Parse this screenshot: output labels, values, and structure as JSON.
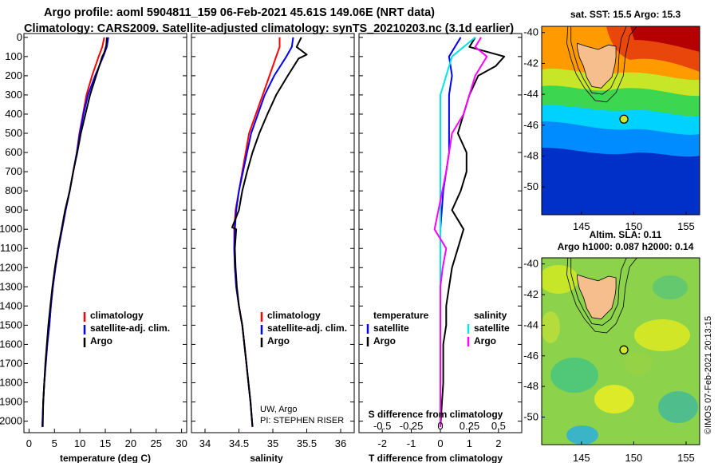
{
  "header": {
    "line1": "Argo profile: aoml 5904811_159 06-Feb-2021 45.61S 149.06E (NRT data)",
    "line2": "Climatology: CARS2009. Satellite-adjusted climatology: synTS_20210203.nc (3.1d earlier)"
  },
  "colors": {
    "climatology": "#ff0000",
    "satellite": "#0000ff",
    "argo": "#000000",
    "sat_t": "#0000ff",
    "sat_s": "#00e5e5",
    "argo_s": "#ff00ff"
  },
  "depth_axis": {
    "ticks": [
      "0",
      "100",
      "200",
      "300",
      "400",
      "500",
      "600",
      "700",
      "800",
      "900",
      "1000",
      "1100",
      "1200",
      "1300",
      "1400",
      "1500",
      "1600",
      "1700",
      "1800",
      "1900",
      "2000"
    ]
  },
  "legend_ts": {
    "climatology": "climatology",
    "satellite": "satellite-adj. clim.",
    "argo": "Argo"
  },
  "legend_diff": {
    "temperature": "temperature",
    "salinity": "salinity",
    "satellite": "satellite",
    "argo": "Argo"
  },
  "credits": {
    "line1": "UW, Argo",
    "line2": "PI: STEPHEN RISER"
  },
  "maps": {
    "top_title": "sat. SST: 15.5 Argo: 15.3",
    "bottom_title1": "Altim. SLA: 0.11",
    "bottom_title2": "Argo h1000: 0.087 h2000: 0.14",
    "lat_ticks": [
      "-40",
      "-42",
      "-44",
      "-46",
      "-48",
      "-50"
    ],
    "lon_ticks": [
      "145",
      "150",
      "155"
    ],
    "stamp": "©IMOS 07-Feb-2021 20:13:15",
    "argo_position": {
      "lat": -45.61,
      "lon": 149.06
    }
  },
  "chart_data": [
    {
      "type": "line",
      "xlabel": "temperature (deg C)",
      "ylabel": "",
      "xlim": [
        -1,
        31
      ],
      "ylim": [
        2060,
        0
      ],
      "x_ticks": [
        "0",
        "5",
        "10",
        "15",
        "20",
        "25",
        "30"
      ],
      "series": [
        {
          "name": "climatology",
          "color": "#ff0000",
          "x": [
            14.8,
            14.4,
            13.7,
            12.4,
            11.3,
            10.6,
            9.9,
            9.4,
            8.7,
            8.0,
            7.2,
            6.5,
            5.8,
            5.2,
            4.7,
            4.3,
            4.0,
            3.6,
            3.3,
            3.0,
            2.8,
            2.6
          ],
          "y": [
            0,
            50,
            100,
            200,
            300,
            400,
            500,
            600,
            700,
            800,
            900,
            1000,
            1100,
            1200,
            1300,
            1400,
            1500,
            1600,
            1700,
            1800,
            1900,
            2030
          ]
        },
        {
          "name": "satellite-adj. clim.",
          "color": "#0000ff",
          "x": [
            15.6,
            15.3,
            14.6,
            13.0,
            11.6,
            10.7,
            10.0,
            9.4,
            8.7,
            8.0,
            7.2,
            6.5,
            5.8,
            5.2,
            4.7,
            4.3,
            4.0,
            3.6,
            3.3,
            3.0,
            2.8,
            2.6
          ],
          "y": [
            0,
            50,
            100,
            200,
            300,
            400,
            500,
            600,
            700,
            800,
            900,
            1000,
            1100,
            1200,
            1300,
            1400,
            1500,
            1600,
            1700,
            1800,
            1900,
            2030
          ]
        },
        {
          "name": "Argo",
          "color": "#000000",
          "x": [
            15.3,
            15.2,
            14.8,
            14.4,
            13.2,
            12.0,
            11.1,
            10.2,
            9.5,
            8.7,
            8.0,
            7.1,
            6.4,
            5.7,
            5.1,
            4.6,
            4.2,
            3.8,
            3.5,
            3.2,
            3.0,
            2.8,
            2.7
          ],
          "y": [
            0,
            40,
            80,
            100,
            200,
            300,
            400,
            500,
            600,
            700,
            800,
            900,
            1000,
            1100,
            1200,
            1300,
            1400,
            1500,
            1600,
            1700,
            1800,
            1900,
            2030
          ]
        }
      ]
    },
    {
      "type": "line",
      "xlabel": "salinity",
      "ylabel": "",
      "xlim": [
        33.8,
        36.2
      ],
      "ylim": [
        2060,
        0
      ],
      "x_ticks": [
        "34",
        "34.5",
        "35",
        "35.5",
        "36"
      ],
      "series": [
        {
          "name": "climatology",
          "color": "#ff0000",
          "x": [
            35.1,
            35.1,
            35.05,
            34.95,
            34.85,
            34.75,
            34.65,
            34.6,
            34.55,
            34.5,
            34.45,
            34.43,
            34.43,
            34.44,
            34.46,
            34.5,
            34.55,
            34.58,
            34.61,
            34.64,
            34.67,
            34.7
          ],
          "y": [
            0,
            50,
            100,
            200,
            300,
            400,
            500,
            600,
            700,
            800,
            900,
            1000,
            1100,
            1200,
            1300,
            1400,
            1500,
            1600,
            1700,
            1800,
            1900,
            2030
          ]
        },
        {
          "name": "satellite-adj. clim.",
          "color": "#0000ff",
          "x": [
            35.3,
            35.28,
            35.2,
            35.02,
            34.88,
            34.78,
            34.68,
            34.62,
            34.56,
            34.5,
            34.46,
            34.44,
            34.43,
            34.44,
            34.46,
            34.5,
            34.55,
            34.58,
            34.61,
            34.64,
            34.67,
            34.7
          ],
          "y": [
            0,
            50,
            100,
            200,
            300,
            400,
            500,
            600,
            700,
            800,
            900,
            1000,
            1100,
            1200,
            1300,
            1400,
            1500,
            1600,
            1700,
            1800,
            1900,
            2030
          ]
        },
        {
          "name": "Argo",
          "color": "#000000",
          "x": [
            35.42,
            35.35,
            35.5,
            35.38,
            35.22,
            35.05,
            34.92,
            34.8,
            34.7,
            34.62,
            34.55,
            34.5,
            34.4,
            34.46,
            34.44,
            34.45,
            34.47,
            34.5,
            34.55,
            34.58,
            34.61,
            34.64,
            34.67,
            34.7
          ],
          "y": [
            0,
            50,
            90,
            110,
            200,
            300,
            400,
            500,
            600,
            700,
            800,
            900,
            990,
            1000,
            1100,
            1200,
            1300,
            1400,
            1500,
            1600,
            1700,
            1800,
            1900,
            2030
          ]
        }
      ]
    },
    {
      "type": "line",
      "xlabel": "T difference from climatology",
      "ylabel": "",
      "xlim": [
        -2.8,
        2.8
      ],
      "ylim": [
        2060,
        0
      ],
      "x_ticks": [
        "-2",
        "-1",
        "0",
        "1",
        "2"
      ],
      "x2label": "S difference from climatology",
      "x2_ticks": [
        "-0.5",
        "-0.25",
        "0",
        "0.25",
        "0.5"
      ],
      "series": [
        {
          "name": "temperature satellite",
          "color": "#0000ff",
          "x": [
            0.7,
            0.5,
            0.3,
            0.4,
            0.3,
            0.3,
            0.3,
            0.3,
            0.2,
            0.1,
            0.05,
            0.0,
            0.0,
            0.0,
            0.0,
            0.0,
            0.0,
            0.0,
            0.0,
            0.0,
            0.0,
            0.0
          ],
          "y": [
            0,
            50,
            100,
            200,
            300,
            400,
            500,
            600,
            700,
            800,
            900,
            1000,
            1100,
            1200,
            1300,
            1400,
            1500,
            1600,
            1700,
            1800,
            1900,
            2030
          ]
        },
        {
          "name": "temperature Argo",
          "color": "#000000",
          "x": [
            1.2,
            1.0,
            2.2,
            1.9,
            1.3,
            1.0,
            0.8,
            0.6,
            0.9,
            0.9,
            0.7,
            0.4,
            0.8,
            0.6,
            0.4,
            0.3,
            0.2,
            0.2,
            0.1,
            0.1,
            0.1,
            0.0
          ],
          "y": [
            0,
            50,
            100,
            150,
            200,
            300,
            400,
            500,
            600,
            700,
            800,
            900,
            1000,
            1100,
            1200,
            1300,
            1400,
            1500,
            1600,
            1700,
            1800,
            2030
          ]
        },
        {
          "name": "salinity satellite",
          "color": "#00e5e5",
          "x": [
            0.3,
            0.2,
            0.1,
            0.05,
            0.0,
            0.0,
            0.0,
            0.0,
            0.0,
            0.0,
            0.0,
            0.0,
            0.0,
            0.0,
            0.0,
            0.0,
            0.0,
            0.0
          ],
          "y": [
            0,
            50,
            100,
            200,
            300,
            400,
            600,
            800,
            1000,
            1100,
            1200,
            1300,
            1400,
            1500,
            1600,
            1700,
            1800,
            2030
          ]
        },
        {
          "name": "salinity Argo",
          "color": "#ff00ff",
          "x": [
            0.35,
            0.3,
            0.4,
            0.3,
            0.25,
            0.2,
            0.1,
            0.05,
            -0.05,
            0.05,
            0.02,
            0.0,
            0.0,
            0.0,
            0.0,
            0.0,
            0.0,
            0.0
          ],
          "y": [
            0,
            50,
            100,
            200,
            300,
            400,
            500,
            700,
            1000,
            1100,
            1200,
            1300,
            1400,
            1500,
            1600,
            1700,
            1800,
            2030
          ]
        }
      ]
    }
  ]
}
